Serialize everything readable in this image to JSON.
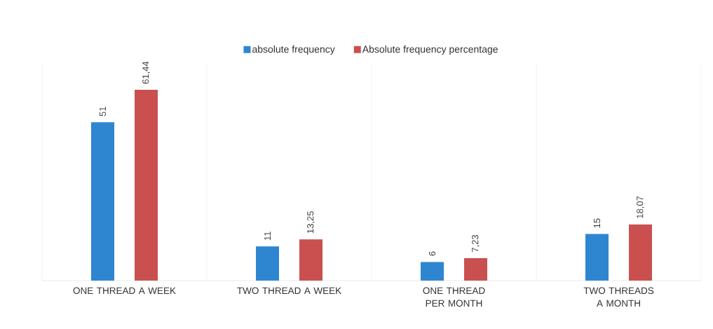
{
  "chart_data": {
    "type": "bar",
    "categories": [
      "ONE THREAD A WEEK",
      "TWO THREAD A WEEK",
      "ONE THREAD PER MONTH",
      "TWO THREADS A MONTH"
    ],
    "series": [
      {
        "name": "absolute frequency",
        "color": "#2e86d1",
        "values": [
          51,
          11,
          6,
          15
        ],
        "value_labels": [
          "51",
          "11",
          "6",
          "15"
        ]
      },
      {
        "name": "Absolute frequency percentage",
        "color": "#c9504f",
        "values": [
          61.44,
          13.25,
          7.23,
          18.07
        ],
        "value_labels": [
          "61,44",
          "13,25",
          "7,23",
          "18,07"
        ]
      }
    ],
    "grid": "x",
    "legend": "top"
  }
}
